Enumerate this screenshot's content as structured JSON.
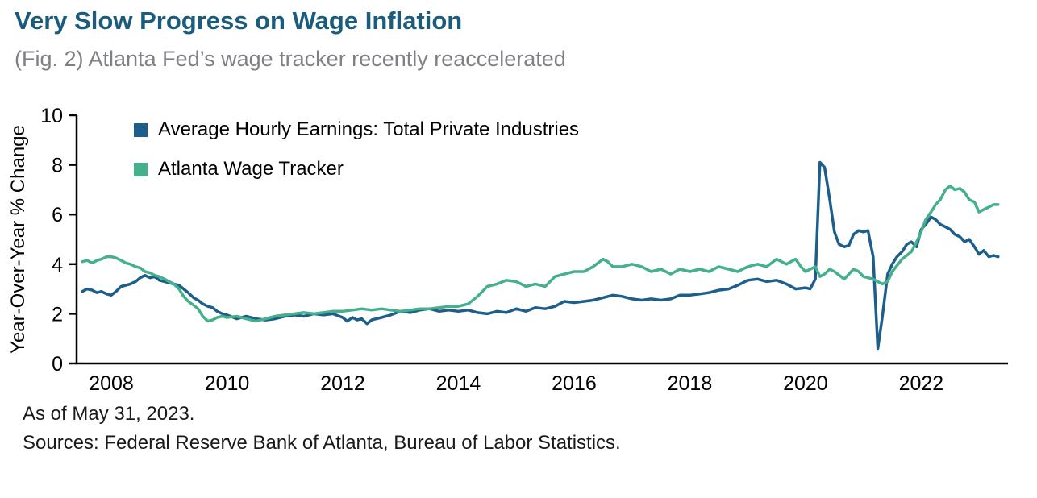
{
  "header": {
    "title": "Very Slow Progress on Wage Inflation",
    "subtitle": "(Fig. 2) Atlanta Fed’s wage tracker recently reaccelerated"
  },
  "footer": {
    "as_of": "As of May 31, 2023.",
    "sources": "Sources: Federal Reserve Bank of Atlanta, Bureau of Labor Statistics."
  },
  "colors": {
    "title": "#1A5C7D",
    "subtitle": "#7F8084",
    "axis": "#000000",
    "tick_text": "#000000",
    "ahe_line": "#1D5F8A",
    "wage_tracker_line": "#45B08C"
  },
  "chart_data": {
    "type": "line",
    "title": "Very Slow Progress on Wage Inflation",
    "subtitle": "(Fig. 2) Atlanta Fed’s wage tracker recently reaccelerated",
    "xlabel": "",
    "ylabel": "Year-Over-Year % Change",
    "xlim": [
      2007.4,
      2023.5
    ],
    "ylim": [
      0,
      10
    ],
    "xticks": [
      2008,
      2010,
      2012,
      2014,
      2016,
      2018,
      2020,
      2022
    ],
    "yticks": [
      0,
      2,
      4,
      6,
      8,
      10
    ],
    "grid": false,
    "legend_position": "top-left-inside",
    "series": [
      {
        "name": "Average Hourly Earnings: Total Private Industries",
        "color": "#1D5F8A",
        "points": [
          [
            2007.5,
            2.9
          ],
          [
            2007.58,
            3.0
          ],
          [
            2007.67,
            2.95
          ],
          [
            2007.75,
            2.85
          ],
          [
            2007.83,
            2.9
          ],
          [
            2007.92,
            2.8
          ],
          [
            2008.0,
            2.75
          ],
          [
            2008.08,
            2.9
          ],
          [
            2008.17,
            3.1
          ],
          [
            2008.25,
            3.15
          ],
          [
            2008.33,
            3.2
          ],
          [
            2008.42,
            3.3
          ],
          [
            2008.5,
            3.45
          ],
          [
            2008.58,
            3.55
          ],
          [
            2008.67,
            3.45
          ],
          [
            2008.75,
            3.5
          ],
          [
            2008.83,
            3.35
          ],
          [
            2008.92,
            3.3
          ],
          [
            2009.0,
            3.25
          ],
          [
            2009.08,
            3.2
          ],
          [
            2009.17,
            3.15
          ],
          [
            2009.25,
            3.0
          ],
          [
            2009.33,
            2.85
          ],
          [
            2009.42,
            2.65
          ],
          [
            2009.5,
            2.55
          ],
          [
            2009.58,
            2.4
          ],
          [
            2009.67,
            2.3
          ],
          [
            2009.75,
            2.25
          ],
          [
            2009.83,
            2.1
          ],
          [
            2009.92,
            2.0
          ],
          [
            2010.0,
            1.95
          ],
          [
            2010.17,
            1.8
          ],
          [
            2010.33,
            1.9
          ],
          [
            2010.5,
            1.8
          ],
          [
            2010.67,
            1.75
          ],
          [
            2010.83,
            1.8
          ],
          [
            2011.0,
            1.9
          ],
          [
            2011.17,
            1.95
          ],
          [
            2011.33,
            1.9
          ],
          [
            2011.5,
            2.0
          ],
          [
            2011.67,
            1.95
          ],
          [
            2011.83,
            2.0
          ],
          [
            2012.0,
            1.85
          ],
          [
            2012.08,
            1.7
          ],
          [
            2012.17,
            1.85
          ],
          [
            2012.25,
            1.75
          ],
          [
            2012.33,
            1.8
          ],
          [
            2012.42,
            1.6
          ],
          [
            2012.5,
            1.75
          ],
          [
            2012.58,
            1.8
          ],
          [
            2012.67,
            1.85
          ],
          [
            2012.83,
            1.95
          ],
          [
            2013.0,
            2.1
          ],
          [
            2013.17,
            2.05
          ],
          [
            2013.33,
            2.15
          ],
          [
            2013.5,
            2.2
          ],
          [
            2013.67,
            2.1
          ],
          [
            2013.83,
            2.15
          ],
          [
            2014.0,
            2.1
          ],
          [
            2014.17,
            2.15
          ],
          [
            2014.33,
            2.05
          ],
          [
            2014.5,
            2.0
          ],
          [
            2014.67,
            2.1
          ],
          [
            2014.83,
            2.05
          ],
          [
            2015.0,
            2.2
          ],
          [
            2015.17,
            2.1
          ],
          [
            2015.33,
            2.25
          ],
          [
            2015.5,
            2.2
          ],
          [
            2015.67,
            2.3
          ],
          [
            2015.83,
            2.5
          ],
          [
            2016.0,
            2.45
          ],
          [
            2016.17,
            2.5
          ],
          [
            2016.33,
            2.55
          ],
          [
            2016.5,
            2.65
          ],
          [
            2016.67,
            2.75
          ],
          [
            2016.83,
            2.7
          ],
          [
            2017.0,
            2.6
          ],
          [
            2017.17,
            2.55
          ],
          [
            2017.33,
            2.6
          ],
          [
            2017.5,
            2.55
          ],
          [
            2017.67,
            2.6
          ],
          [
            2017.83,
            2.75
          ],
          [
            2018.0,
            2.75
          ],
          [
            2018.17,
            2.8
          ],
          [
            2018.33,
            2.85
          ],
          [
            2018.5,
            2.95
          ],
          [
            2018.67,
            3.0
          ],
          [
            2018.83,
            3.15
          ],
          [
            2019.0,
            3.35
          ],
          [
            2019.17,
            3.4
          ],
          [
            2019.33,
            3.3
          ],
          [
            2019.5,
            3.35
          ],
          [
            2019.67,
            3.2
          ],
          [
            2019.83,
            3.0
          ],
          [
            2020.0,
            3.05
          ],
          [
            2020.08,
            3.0
          ],
          [
            2020.17,
            3.4
          ],
          [
            2020.25,
            8.1
          ],
          [
            2020.33,
            7.9
          ],
          [
            2020.42,
            6.6
          ],
          [
            2020.5,
            5.3
          ],
          [
            2020.58,
            4.8
          ],
          [
            2020.67,
            4.7
          ],
          [
            2020.75,
            4.75
          ],
          [
            2020.83,
            5.2
          ],
          [
            2020.92,
            5.35
          ],
          [
            2021.0,
            5.3
          ],
          [
            2021.08,
            5.35
          ],
          [
            2021.17,
            4.3
          ],
          [
            2021.25,
            0.6
          ],
          [
            2021.33,
            1.9
          ],
          [
            2021.42,
            3.6
          ],
          [
            2021.5,
            4.0
          ],
          [
            2021.58,
            4.3
          ],
          [
            2021.67,
            4.5
          ],
          [
            2021.75,
            4.8
          ],
          [
            2021.83,
            4.9
          ],
          [
            2021.92,
            4.7
          ],
          [
            2022.0,
            5.4
          ],
          [
            2022.08,
            5.6
          ],
          [
            2022.17,
            5.9
          ],
          [
            2022.25,
            5.8
          ],
          [
            2022.33,
            5.6
          ],
          [
            2022.42,
            5.5
          ],
          [
            2022.5,
            5.4
          ],
          [
            2022.58,
            5.2
          ],
          [
            2022.67,
            5.1
          ],
          [
            2022.75,
            4.9
          ],
          [
            2022.83,
            5.0
          ],
          [
            2022.92,
            4.7
          ],
          [
            2023.0,
            4.4
          ],
          [
            2023.08,
            4.55
          ],
          [
            2023.17,
            4.3
          ],
          [
            2023.25,
            4.35
          ],
          [
            2023.33,
            4.3
          ]
        ]
      },
      {
        "name": "Atlanta Wage Tracker",
        "color": "#45B08C",
        "points": [
          [
            2007.5,
            4.1
          ],
          [
            2007.58,
            4.15
          ],
          [
            2007.67,
            4.05
          ],
          [
            2007.75,
            4.15
          ],
          [
            2007.83,
            4.2
          ],
          [
            2007.92,
            4.3
          ],
          [
            2008.0,
            4.3
          ],
          [
            2008.08,
            4.25
          ],
          [
            2008.17,
            4.15
          ],
          [
            2008.25,
            4.05
          ],
          [
            2008.33,
            4.0
          ],
          [
            2008.42,
            3.9
          ],
          [
            2008.5,
            3.85
          ],
          [
            2008.58,
            3.7
          ],
          [
            2008.67,
            3.65
          ],
          [
            2008.75,
            3.55
          ],
          [
            2008.83,
            3.5
          ],
          [
            2008.92,
            3.4
          ],
          [
            2009.0,
            3.3
          ],
          [
            2009.08,
            3.2
          ],
          [
            2009.17,
            3.0
          ],
          [
            2009.25,
            2.7
          ],
          [
            2009.33,
            2.5
          ],
          [
            2009.42,
            2.35
          ],
          [
            2009.5,
            2.2
          ],
          [
            2009.58,
            1.9
          ],
          [
            2009.67,
            1.7
          ],
          [
            2009.75,
            1.75
          ],
          [
            2009.83,
            1.85
          ],
          [
            2009.92,
            1.9
          ],
          [
            2010.0,
            1.85
          ],
          [
            2010.17,
            1.9
          ],
          [
            2010.33,
            1.8
          ],
          [
            2010.5,
            1.7
          ],
          [
            2010.67,
            1.8
          ],
          [
            2010.83,
            1.9
          ],
          [
            2011.0,
            1.95
          ],
          [
            2011.17,
            2.0
          ],
          [
            2011.33,
            2.05
          ],
          [
            2011.5,
            2.0
          ],
          [
            2011.67,
            2.05
          ],
          [
            2011.83,
            2.1
          ],
          [
            2012.0,
            2.1
          ],
          [
            2012.17,
            2.15
          ],
          [
            2012.33,
            2.2
          ],
          [
            2012.5,
            2.15
          ],
          [
            2012.67,
            2.2
          ],
          [
            2012.83,
            2.15
          ],
          [
            2013.0,
            2.1
          ],
          [
            2013.17,
            2.15
          ],
          [
            2013.33,
            2.2
          ],
          [
            2013.5,
            2.2
          ],
          [
            2013.67,
            2.25
          ],
          [
            2013.83,
            2.3
          ],
          [
            2014.0,
            2.3
          ],
          [
            2014.17,
            2.4
          ],
          [
            2014.33,
            2.7
          ],
          [
            2014.5,
            3.1
          ],
          [
            2014.67,
            3.2
          ],
          [
            2014.83,
            3.35
          ],
          [
            2015.0,
            3.3
          ],
          [
            2015.17,
            3.1
          ],
          [
            2015.33,
            3.2
          ],
          [
            2015.5,
            3.1
          ],
          [
            2015.67,
            3.5
          ],
          [
            2015.83,
            3.6
          ],
          [
            2016.0,
            3.7
          ],
          [
            2016.17,
            3.7
          ],
          [
            2016.33,
            3.9
          ],
          [
            2016.5,
            4.2
          ],
          [
            2016.58,
            4.1
          ],
          [
            2016.67,
            3.9
          ],
          [
            2016.83,
            3.9
          ],
          [
            2017.0,
            4.0
          ],
          [
            2017.17,
            3.9
          ],
          [
            2017.33,
            3.7
          ],
          [
            2017.5,
            3.8
          ],
          [
            2017.67,
            3.6
          ],
          [
            2017.83,
            3.8
          ],
          [
            2018.0,
            3.7
          ],
          [
            2018.17,
            3.8
          ],
          [
            2018.33,
            3.7
          ],
          [
            2018.5,
            3.9
          ],
          [
            2018.67,
            3.8
          ],
          [
            2018.83,
            3.7
          ],
          [
            2019.0,
            3.9
          ],
          [
            2019.17,
            4.0
          ],
          [
            2019.33,
            3.9
          ],
          [
            2019.5,
            4.2
          ],
          [
            2019.67,
            4.0
          ],
          [
            2019.83,
            4.2
          ],
          [
            2019.92,
            3.9
          ],
          [
            2020.0,
            3.7
          ],
          [
            2020.17,
            3.9
          ],
          [
            2020.25,
            3.5
          ],
          [
            2020.33,
            3.6
          ],
          [
            2020.42,
            3.8
          ],
          [
            2020.5,
            3.7
          ],
          [
            2020.67,
            3.4
          ],
          [
            2020.83,
            3.8
          ],
          [
            2020.92,
            3.7
          ],
          [
            2021.0,
            3.5
          ],
          [
            2021.17,
            3.4
          ],
          [
            2021.25,
            3.3
          ],
          [
            2021.33,
            3.2
          ],
          [
            2021.42,
            3.3
          ],
          [
            2021.5,
            3.7
          ],
          [
            2021.67,
            4.2
          ],
          [
            2021.83,
            4.5
          ],
          [
            2021.92,
            4.9
          ],
          [
            2022.0,
            5.3
          ],
          [
            2022.08,
            5.8
          ],
          [
            2022.17,
            6.1
          ],
          [
            2022.25,
            6.4
          ],
          [
            2022.33,
            6.6
          ],
          [
            2022.42,
            7.0
          ],
          [
            2022.5,
            7.15
          ],
          [
            2022.58,
            7.0
          ],
          [
            2022.67,
            7.05
          ],
          [
            2022.75,
            6.9
          ],
          [
            2022.83,
            6.6
          ],
          [
            2022.92,
            6.5
          ],
          [
            2023.0,
            6.1
          ],
          [
            2023.08,
            6.2
          ],
          [
            2023.17,
            6.3
          ],
          [
            2023.25,
            6.4
          ],
          [
            2023.33,
            6.4
          ]
        ]
      }
    ]
  }
}
